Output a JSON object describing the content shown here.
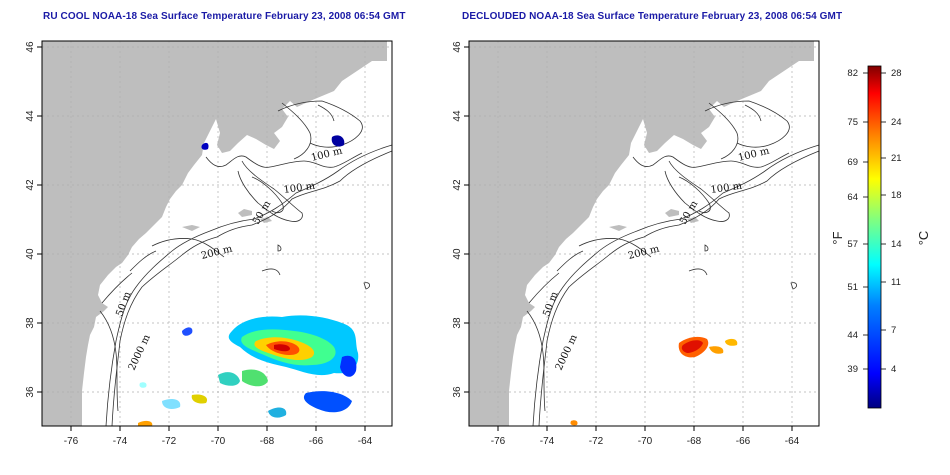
{
  "left_panel": {
    "title": "RU COOL NOAA-18 Sea Surface Temperature February 23, 2008 06:54 GMT"
  },
  "right_panel": {
    "title": "DECLOUDED NOAA-18 Sea Surface Temperature February 23, 2008 06:54 GMT"
  },
  "axes": {
    "x_ticks": [
      "-76",
      "-74",
      "-72",
      "-70",
      "-68",
      "-66",
      "-64"
    ],
    "y_ticks": [
      "46",
      "44",
      "42",
      "40",
      "38",
      "36"
    ]
  },
  "contour_labels": {
    "m100_north": "100 m",
    "m100_south": "100 m",
    "m50_gb": "50 m",
    "m200": "200 m",
    "m50_shelf": "50 m",
    "m2000": "2000 m"
  },
  "colorbar": {
    "fahrenheit_ticks": [
      "82",
      "75",
      "69",
      "64",
      "57",
      "51",
      "44",
      "39"
    ],
    "celsius_ticks": [
      "28",
      "24",
      "21",
      "18",
      "14",
      "11",
      "7",
      "4"
    ],
    "fahrenheit_unit": "°F",
    "celsius_unit": "°C",
    "range_celsius": [
      1,
      29
    ],
    "colors": [
      "#000080",
      "#0000ff",
      "#0080ff",
      "#00ffff",
      "#80ff80",
      "#ffff00",
      "#ff8000",
      "#ff0000",
      "#800000"
    ]
  },
  "colors": {
    "land": "#bebebe",
    "grid": "#b0b0b0",
    "contour": "#333333",
    "title": "#1a1aa6"
  }
}
